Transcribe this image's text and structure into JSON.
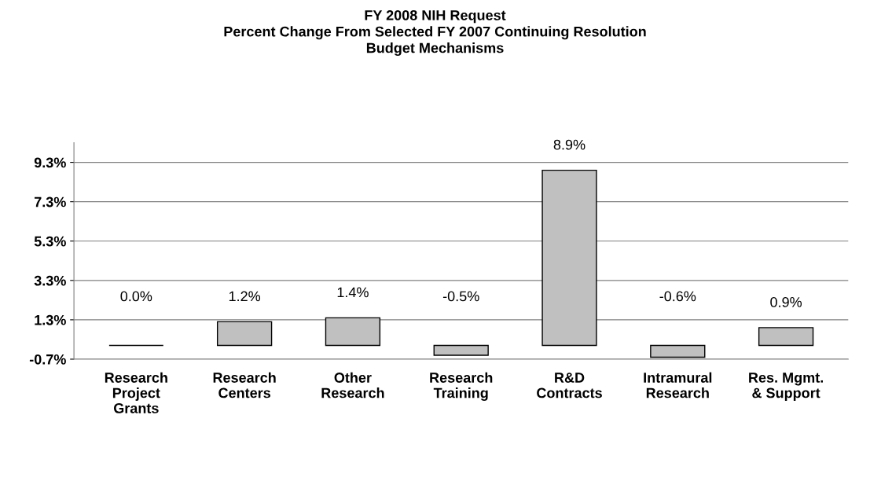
{
  "chart_data": {
    "type": "bar",
    "title": "FY 2008 NIH Request\nPercent Change From Selected FY 2007 Continuing Resolution\nBudget Mechanisms",
    "categories": [
      "Research\nProject\nGrants",
      "Research\nCenters",
      "Other\nResearch",
      "Research\nTraining",
      "R&D\nContracts",
      "Intramural\nResearch",
      "Res. Mgmt.\n& Support"
    ],
    "values": [
      0.0,
      1.2,
      1.4,
      -0.5,
      8.9,
      -0.6,
      0.9
    ],
    "value_labels": [
      "0.0%",
      "1.2%",
      "1.4%",
      "-0.5%",
      "8.9%",
      "-0.6%",
      "0.9%"
    ],
    "colors": [
      "#000000",
      "#c0c0c0",
      "#c0c0c0",
      "#c0c0c0",
      "#c0c0c0",
      "#c0c0c0",
      "#c0c0c0"
    ],
    "ylim": [
      -0.7,
      10.3
    ],
    "yticks": [
      {
        "value": -0.7,
        "label": "-0.7%"
      },
      {
        "value": 1.3,
        "label": "1.3%"
      },
      {
        "value": 3.3,
        "label": "3.3%"
      },
      {
        "value": 5.3,
        "label": "5.3%"
      },
      {
        "value": 7.3,
        "label": "7.3%"
      },
      {
        "value": 9.3,
        "label": "9.3%"
      }
    ],
    "grid": "y"
  }
}
